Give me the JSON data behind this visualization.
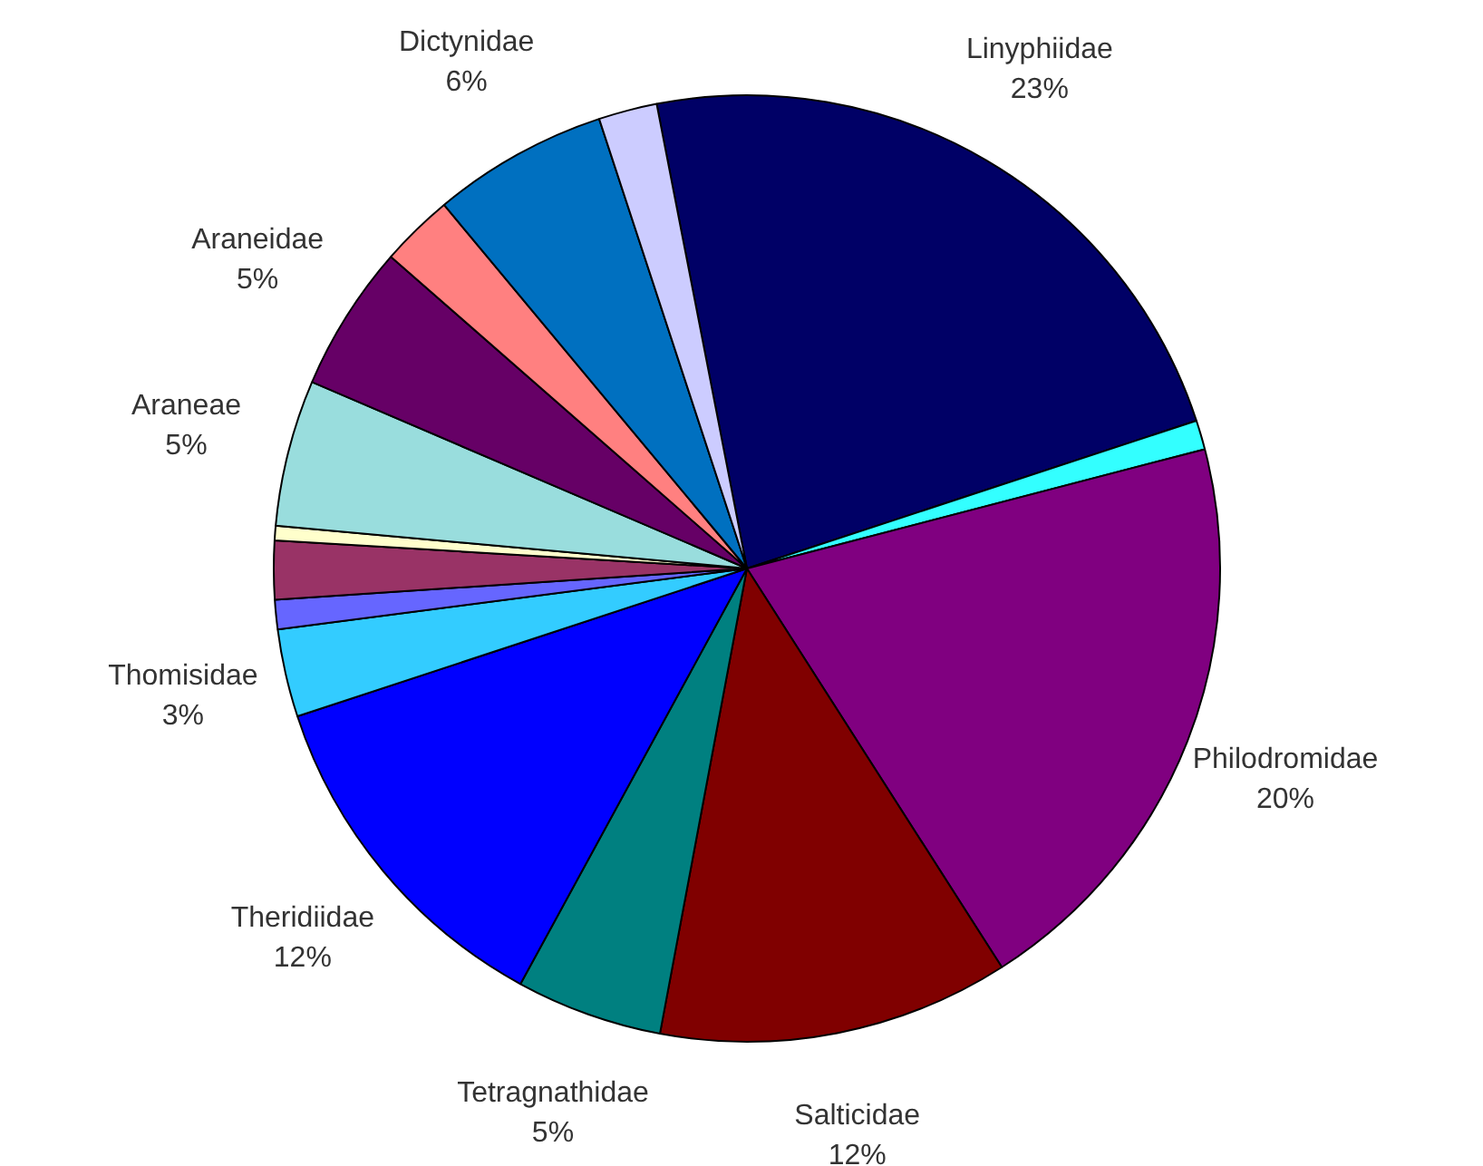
{
  "chart_data": {
    "type": "pie",
    "categories": [
      "Linyphiidae",
      null,
      "Philodromidae",
      "Salticidae",
      "Tetragnathidae",
      "Theridiidae",
      "Thomisidae",
      null,
      null,
      null,
      "Araneae",
      "Araneidae",
      null,
      "Dictynidae",
      null
    ],
    "values": [
      23,
      1,
      20,
      12,
      5,
      12,
      3,
      1,
      2,
      0.5,
      5,
      5,
      2.5,
      6,
      2
    ],
    "value_labels": [
      "23%",
      null,
      "20%",
      "12%",
      "5%",
      "12%",
      "3%",
      null,
      null,
      null,
      "5%",
      "5%",
      null,
      "6%",
      null
    ],
    "colors": [
      "#000066",
      "#33ffff",
      "#800080",
      "#800000",
      "#008080",
      "#0000ff",
      "#33ccff",
      "#6666ff",
      "#993366",
      "#ffffcc",
      "#99dddd",
      "#660066",
      "#ff8080",
      "#0070c0",
      "#ccccff"
    ],
    "legend": false
  }
}
